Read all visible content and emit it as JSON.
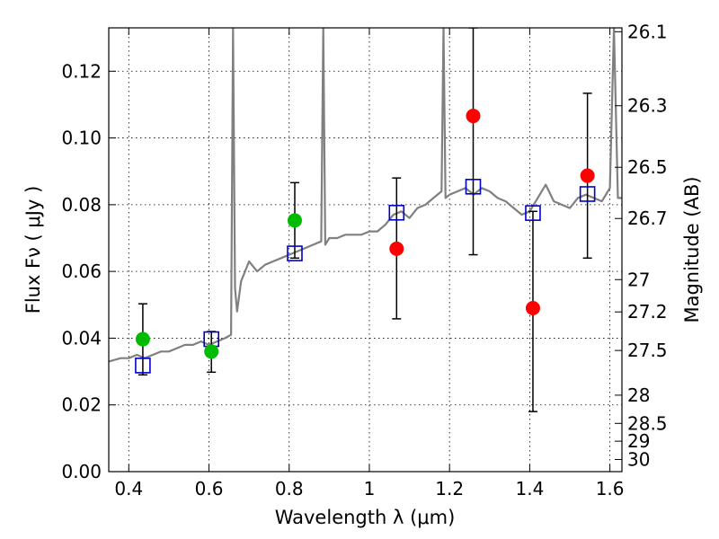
{
  "chart_data": {
    "type": "scatter",
    "xlabel": "Wavelength  λ (μm)",
    "ylabel": "Flux  Fν  ( μJy )",
    "y2label": "Magnitude (AB)",
    "xlim": [
      0.35,
      1.63
    ],
    "ylim": [
      0.0,
      0.133
    ],
    "grid": true,
    "x_ticks": [
      {
        "value": 0.4,
        "label": "0.4"
      },
      {
        "value": 0.6,
        "label": "0.6"
      },
      {
        "value": 0.8,
        "label": "0.8"
      },
      {
        "value": 1.0,
        "label": "1"
      },
      {
        "value": 1.2,
        "label": "1.2"
      },
      {
        "value": 1.4,
        "label": "1.4"
      },
      {
        "value": 1.6,
        "label": "1.6"
      }
    ],
    "y_ticks": [
      {
        "value": 0.0,
        "label": "0.00"
      },
      {
        "value": 0.02,
        "label": "0.02"
      },
      {
        "value": 0.04,
        "label": "0.04"
      },
      {
        "value": 0.06,
        "label": "0.06"
      },
      {
        "value": 0.08,
        "label": "0.08"
      },
      {
        "value": 0.1,
        "label": "0.10"
      },
      {
        "value": 0.12,
        "label": "0.12"
      }
    ],
    "y2_ticks": [
      {
        "value": 26.1,
        "label": "26.1"
      },
      {
        "value": 26.3,
        "label": "26.3"
      },
      {
        "value": 26.5,
        "label": "26.5"
      },
      {
        "value": 26.7,
        "label": "26.7"
      },
      {
        "value": 27.0,
        "label": "27"
      },
      {
        "value": 27.2,
        "label": "27.2"
      },
      {
        "value": 27.5,
        "label": "27.5"
      },
      {
        "value": 28.0,
        "label": "28"
      },
      {
        "value": 28.5,
        "label": "28.5"
      },
      {
        "value": 29.0,
        "label": "29"
      },
      {
        "value": 30.0,
        "label": "30"
      }
    ],
    "colors": {
      "spectrum": "#808080",
      "green_points": "#00bb00",
      "red_points": "#ff0000",
      "model_squares": "#0000cc",
      "error_bars": "#000000"
    },
    "spectrum": {
      "x": [
        0.35,
        0.38,
        0.4,
        0.42,
        0.44,
        0.46,
        0.48,
        0.5,
        0.52,
        0.54,
        0.56,
        0.58,
        0.6,
        0.62,
        0.64,
        0.655,
        0.66,
        0.665,
        0.67,
        0.68,
        0.7,
        0.72,
        0.74,
        0.76,
        0.78,
        0.8,
        0.82,
        0.84,
        0.86,
        0.88,
        0.885,
        0.89,
        0.9,
        0.92,
        0.94,
        0.96,
        0.98,
        1.0,
        1.02,
        1.04,
        1.06,
        1.08,
        1.1,
        1.12,
        1.14,
        1.16,
        1.18,
        1.185,
        1.19,
        1.2,
        1.22,
        1.24,
        1.26,
        1.28,
        1.3,
        1.32,
        1.34,
        1.36,
        1.38,
        1.4,
        1.42,
        1.44,
        1.46,
        1.48,
        1.5,
        1.52,
        1.54,
        1.56,
        1.58,
        1.6,
        1.61,
        1.62,
        1.63
      ],
      "y": [
        0.033,
        0.034,
        0.034,
        0.035,
        0.034,
        0.035,
        0.036,
        0.036,
        0.037,
        0.038,
        0.038,
        0.039,
        0.038,
        0.039,
        0.04,
        0.041,
        0.133,
        0.055,
        0.048,
        0.057,
        0.063,
        0.06,
        0.062,
        0.063,
        0.064,
        0.065,
        0.066,
        0.067,
        0.068,
        0.069,
        0.133,
        0.068,
        0.07,
        0.07,
        0.071,
        0.071,
        0.071,
        0.072,
        0.072,
        0.074,
        0.077,
        0.078,
        0.076,
        0.079,
        0.08,
        0.082,
        0.084,
        0.133,
        0.082,
        0.083,
        0.084,
        0.085,
        0.083,
        0.085,
        0.084,
        0.082,
        0.081,
        0.079,
        0.077,
        0.078,
        0.082,
        0.086,
        0.081,
        0.08,
        0.079,
        0.082,
        0.083,
        0.082,
        0.081,
        0.085,
        0.133,
        0.082,
        0.082
      ]
    },
    "green_points": [
      {
        "x": 0.435,
        "y": 0.0397
      },
      {
        "x": 0.606,
        "y": 0.036
      },
      {
        "x": 0.814,
        "y": 0.0753
      }
    ],
    "red_points": [
      {
        "x": 1.068,
        "y": 0.0668
      },
      {
        "x": 1.259,
        "y": 0.1066
      },
      {
        "x": 1.408,
        "y": 0.049
      },
      {
        "x": 1.544,
        "y": 0.0887
      }
    ],
    "model_squares": [
      {
        "x": 0.435,
        "y": 0.0318
      },
      {
        "x": 0.606,
        "y": 0.0397
      },
      {
        "x": 0.814,
        "y": 0.0654
      },
      {
        "x": 1.068,
        "y": 0.0776
      },
      {
        "x": 1.259,
        "y": 0.0854
      },
      {
        "x": 1.408,
        "y": 0.0775
      },
      {
        "x": 1.544,
        "y": 0.0832
      }
    ],
    "error_bars": [
      {
        "x": 0.435,
        "low": 0.029,
        "high": 0.0503
      },
      {
        "x": 0.606,
        "low": 0.0298,
        "high": 0.042
      },
      {
        "x": 0.814,
        "low": 0.064,
        "high": 0.0866
      },
      {
        "x": 1.068,
        "low": 0.0458,
        "high": 0.088
      },
      {
        "x": 1.259,
        "low": 0.065,
        "high": 0.133
      },
      {
        "x": 1.408,
        "low": 0.018,
        "high": 0.078
      },
      {
        "x": 1.544,
        "low": 0.064,
        "high": 0.1134
      }
    ]
  }
}
